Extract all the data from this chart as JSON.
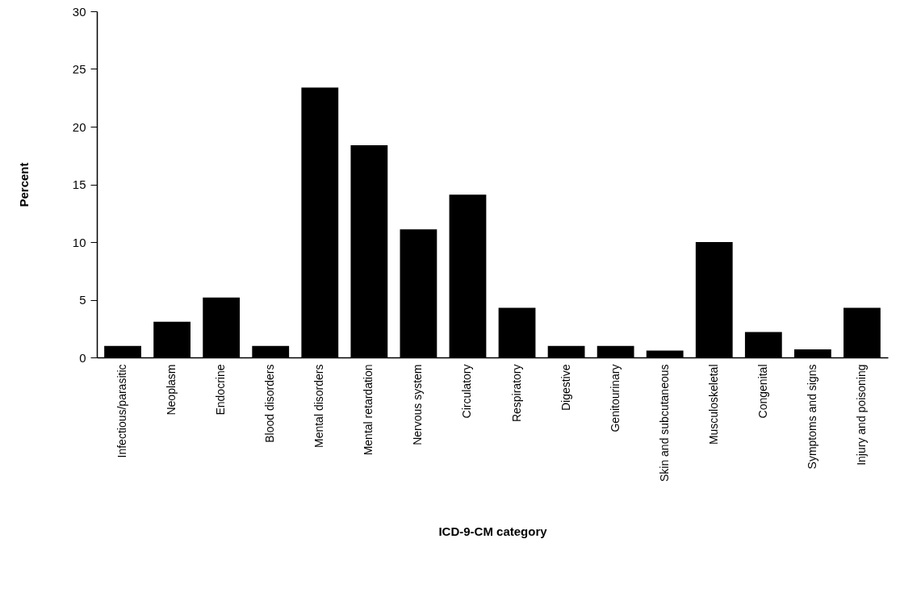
{
  "chart_data": {
    "type": "bar",
    "xlabel": "ICD-9-CM category",
    "ylabel": "Percent",
    "categories": [
      "Infectious/parasitic",
      "Neoplasm",
      "Endocrine",
      "Blood disorders",
      "Mental disorders",
      "Mental retardation",
      "Nervous system",
      "Circulatory",
      "Respiratory",
      "Digestive",
      "Genitourinary",
      "Skin and subcutaneous",
      "Musculoskeletal",
      "Congenital",
      "Symptoms and signs",
      "Injury and poisoning"
    ],
    "values": [
      1.0,
      3.1,
      5.2,
      1.0,
      23.4,
      18.4,
      11.1,
      14.1,
      4.3,
      1.0,
      1.0,
      0.6,
      10.0,
      2.2,
      0.7,
      4.3
    ],
    "color": "#000000",
    "ylim": [
      0,
      30
    ],
    "yticks": [
      0,
      5,
      10,
      15,
      20,
      25,
      30
    ],
    "grid": false
  }
}
